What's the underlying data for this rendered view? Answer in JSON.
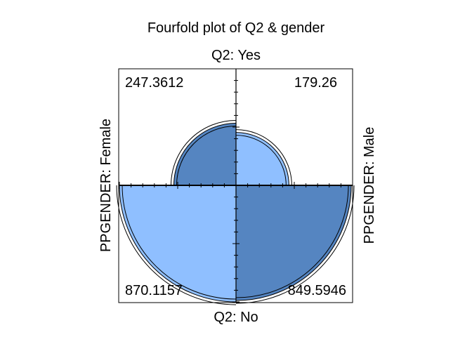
{
  "chart_data": {
    "type": "fourfold",
    "title": "Fourfold plot of Q2 & gender",
    "top_label": "Q2: Yes",
    "bottom_label": "Q2: No",
    "left_label": "PPGENDER: Female",
    "right_label": "PPGENDER: Male",
    "cells": {
      "top_left": {
        "row": "Yes",
        "col": "Female",
        "value": "247.3612",
        "num": 247.3612
      },
      "top_right": {
        "row": "Yes",
        "col": "Male",
        "value": "179.26",
        "num": 179.26
      },
      "bottom_left": {
        "row": "No",
        "col": "Female",
        "value": "870.1157",
        "num": 870.1157
      },
      "bottom_right": {
        "row": "No",
        "col": "Male",
        "value": "849.5946",
        "num": 849.5946
      }
    },
    "colors": {
      "dark": "#5585c1",
      "light": "#8fbfff",
      "outline": "#000000"
    }
  }
}
